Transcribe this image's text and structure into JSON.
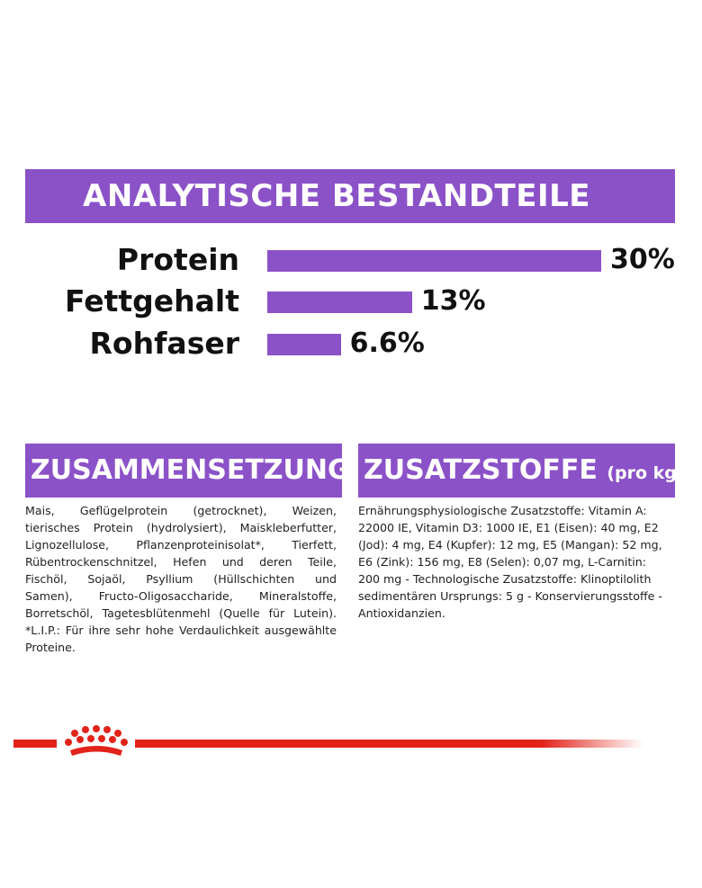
{
  "chart_data": {
    "type": "bar",
    "orientation": "horizontal",
    "title": "ANALYTISCHE BESTANDTEILE",
    "categories": [
      "Protein",
      "Fettgehalt",
      "Rohfaser"
    ],
    "values": [
      30,
      13,
      6.6
    ],
    "value_labels": [
      "30%",
      "13%",
      "6.6%"
    ],
    "color": "#8b52c8"
  },
  "composition": {
    "heading": "ZUSAMMENSETZUNG",
    "lines": [
      "Mais, Geflügelprotein (getrocknet), Weizen,",
      "tierisches Protein (hydrolysiert), Maiskleberfutter,",
      "Lignozellulose, Pflanzenproteinisolat*, Tierfett,",
      "Rübentrockenschnitzel, Hefen und deren Teile,",
      "Fischöl, Sojaöl, Psyllium (Hüllschichten und",
      "Samen), Fructo-Oligosaccharide, Mineralstoffe,",
      "Borretschöl, Tagetesblütenmehl (Quelle für Lutein).",
      "*L.I.P.: Für ihre sehr hohe Verdaulichkeit ausgewählte",
      "Proteine."
    ]
  },
  "additives": {
    "heading": "ZUSATZSTOFFE",
    "unit": "(pro kg)",
    "lines": [
      "Ernährungsphysiologische Zusatzstoffe: Vitamin A:",
      "22000 IE, Vitamin D3: 1000 IE, E1 (Eisen): 40 mg, E2",
      "(Jod): 4 mg, E4 (Kupfer): 12 mg, E5 (Mangan): 52 mg,",
      "E6 (Zink): 156 mg, E8 (Selen): 0,07 mg, L-Carnitin:",
      "200 mg - Technologische Zusatzstoffe: Klinoptilolith",
      "sedimentären Ursprungs: 5 g - Konservierungsstoffe -",
      "Antioxidanzien."
    ]
  }
}
